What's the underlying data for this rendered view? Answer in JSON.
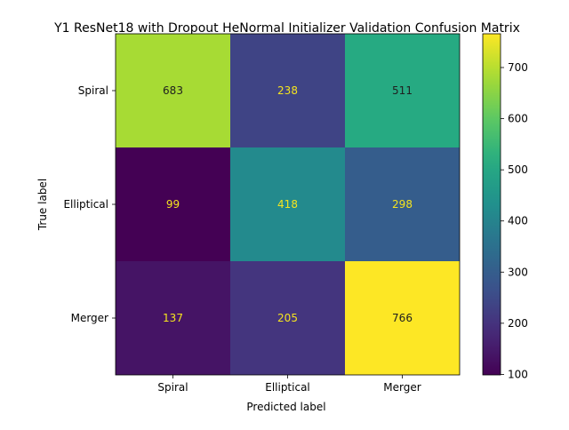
{
  "chart_data": {
    "type": "heatmap",
    "title": "Y1 ResNet18 with Dropout HeNormal Initializer Validation Confusion Matrix",
    "xlabel": "Predicted label",
    "ylabel": "True label",
    "x_categories": [
      "Spiral",
      "Elliptical",
      "Merger"
    ],
    "y_categories": [
      "Spiral",
      "Elliptical",
      "Merger"
    ],
    "values": [
      [
        683,
        238,
        511
      ],
      [
        99,
        418,
        298
      ],
      [
        137,
        205,
        766
      ]
    ],
    "colorbar": {
      "colormap": "viridis",
      "range": [
        99,
        766
      ],
      "ticks": [
        100,
        200,
        300,
        400,
        500,
        600,
        700
      ]
    }
  }
}
